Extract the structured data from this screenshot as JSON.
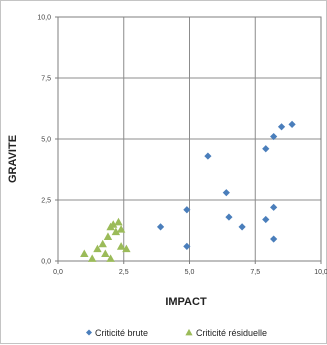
{
  "chart_data": {
    "type": "scatter",
    "xlabel": "IMPACT",
    "ylabel": "GRAVITE",
    "xlim": [
      0,
      10
    ],
    "ylim": [
      0,
      10
    ],
    "x_ticks": [
      "0,0",
      "2,5",
      "5,0",
      "7,5",
      "10,0"
    ],
    "y_ticks": [
      "0,0",
      "2,5",
      "5,0",
      "7,5",
      "10,0"
    ],
    "grid": true,
    "legend_position": "bottom",
    "series": [
      {
        "name": "Criticité brute",
        "marker": "diamond",
        "color": "#4a7ebb",
        "points": [
          [
            3.9,
            1.4
          ],
          [
            4.9,
            2.1
          ],
          [
            4.9,
            0.6
          ],
          [
            5.7,
            4.3
          ],
          [
            6.4,
            2.8
          ],
          [
            6.5,
            1.8
          ],
          [
            7.0,
            1.4
          ],
          [
            7.9,
            4.6
          ],
          [
            7.9,
            1.7
          ],
          [
            8.2,
            5.1
          ],
          [
            8.2,
            2.2
          ],
          [
            8.2,
            0.9
          ],
          [
            8.5,
            5.5
          ],
          [
            8.9,
            5.6
          ]
        ]
      },
      {
        "name": "Criticité résiduelle",
        "marker": "triangle",
        "color": "#9bbb59",
        "points": [
          [
            1.0,
            0.3
          ],
          [
            1.3,
            0.1
          ],
          [
            1.5,
            0.5
          ],
          [
            1.7,
            0.7
          ],
          [
            1.8,
            0.3
          ],
          [
            1.9,
            1.0
          ],
          [
            2.0,
            0.1
          ],
          [
            2.0,
            1.4
          ],
          [
            2.1,
            1.5
          ],
          [
            2.2,
            1.2
          ],
          [
            2.3,
            1.6
          ],
          [
            2.4,
            1.3
          ],
          [
            2.4,
            0.6
          ],
          [
            2.6,
            0.5
          ]
        ]
      }
    ]
  }
}
